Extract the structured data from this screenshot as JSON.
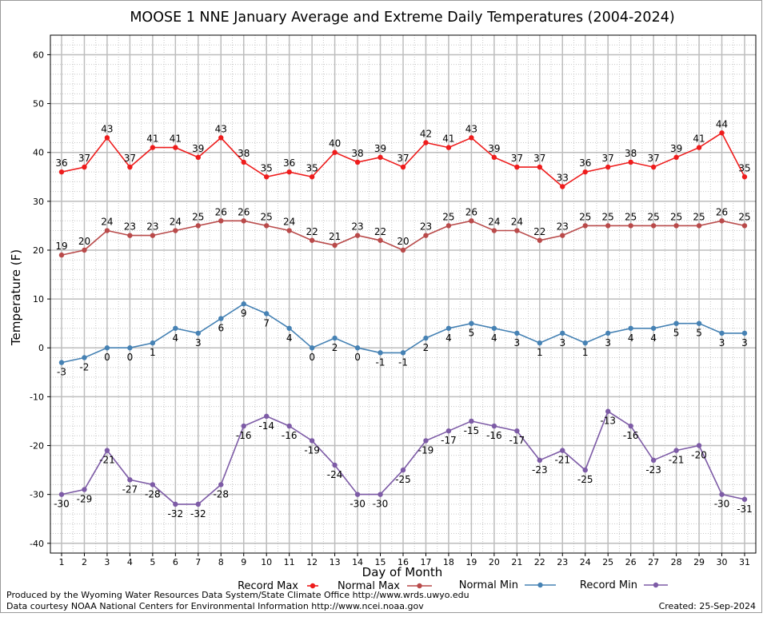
{
  "chart_data": {
    "type": "line",
    "title": "MOOSE 1 NNE January Average and Extreme Daily Temperatures (2004-2024)",
    "xlabel": "Day of Month",
    "ylabel": "Temperature (F)",
    "ylim": [
      -42,
      64
    ],
    "yticks": [
      -40,
      -30,
      -20,
      -10,
      0,
      10,
      20,
      30,
      40,
      50,
      60
    ],
    "x": [
      1,
      2,
      3,
      4,
      5,
      6,
      7,
      8,
      9,
      10,
      11,
      12,
      13,
      14,
      15,
      16,
      17,
      18,
      19,
      20,
      21,
      22,
      23,
      24,
      25,
      26,
      27,
      28,
      29,
      30,
      31
    ],
    "grid": true,
    "legend_position": "bottom",
    "series": [
      {
        "name": "Record Max",
        "color": "#ee1c1c",
        "label_pos": "above",
        "values": [
          36,
          37,
          43,
          37,
          41,
          41,
          39,
          43,
          38,
          35,
          36,
          35,
          40,
          38,
          39,
          37,
          42,
          41,
          43,
          39,
          37,
          37,
          33,
          36,
          37,
          38,
          37,
          39,
          41,
          44,
          35
        ]
      },
      {
        "name": "Normal Max",
        "color": "#b94a4a",
        "label_pos": "above",
        "values": [
          19,
          20,
          24,
          23,
          23,
          24,
          25,
          26,
          26,
          25,
          24,
          22,
          21,
          23,
          22,
          20,
          23,
          25,
          26,
          24,
          24,
          22,
          23,
          25,
          25,
          25,
          25,
          25,
          25,
          26,
          25
        ]
      },
      {
        "name": "Normal Min",
        "color": "#4682b4",
        "label_pos": "below",
        "values": [
          -3,
          -2,
          0,
          0,
          1,
          4,
          3,
          6,
          9,
          7,
          4,
          0,
          2,
          0,
          -1,
          -1,
          2,
          4,
          5,
          4,
          3,
          1,
          3,
          1,
          3,
          4,
          4,
          5,
          5,
          3,
          3
        ]
      },
      {
        "name": "Record Min",
        "color": "#7d5ba6",
        "label_pos": "below",
        "values": [
          -30,
          -29,
          -21,
          -27,
          -28,
          -32,
          -32,
          -28,
          -16,
          -14,
          -16,
          -19,
          -24,
          -30,
          -30,
          -25,
          -19,
          -17,
          -15,
          -16,
          -17,
          -23,
          -21,
          -25,
          -13,
          -16,
          -23,
          -21,
          -20,
          -30,
          -31
        ]
      }
    ]
  },
  "footer": {
    "produced_by": "Produced by the Wyoming Water Resources Data System/State Climate Office http://www.wrds.uwyo.edu",
    "courtesy": "Data courtesy NOAA National Centers for Environmental Information http://www.ncei.noaa.gov",
    "created": "Created: 25-Sep-2024"
  }
}
